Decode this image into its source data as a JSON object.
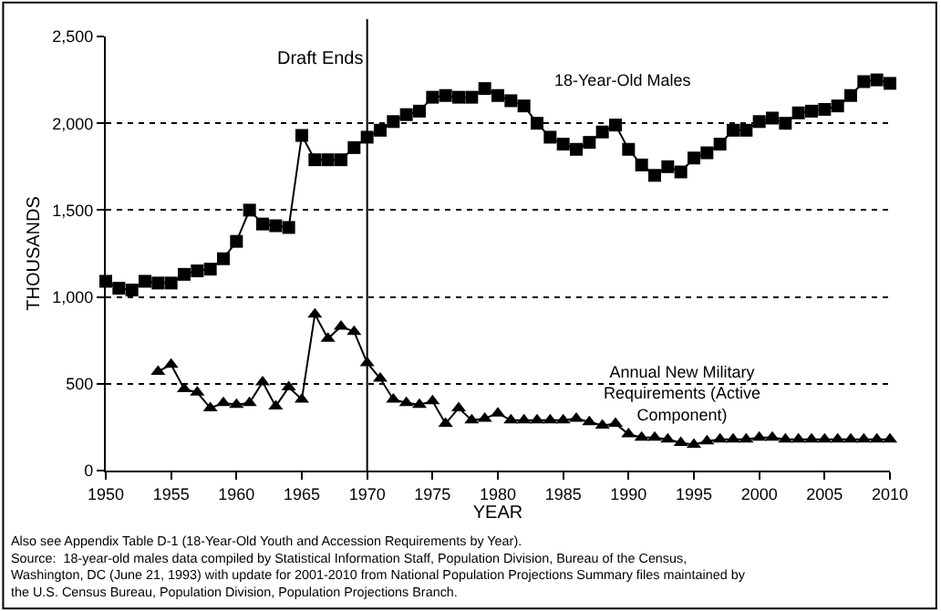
{
  "chart_data": {
    "type": "line",
    "xlabel": "YEAR",
    "ylabel": "THOUSANDS",
    "x": [
      1950,
      1951,
      1952,
      1953,
      1954,
      1955,
      1956,
      1957,
      1958,
      1959,
      1960,
      1961,
      1962,
      1963,
      1964,
      1965,
      1966,
      1967,
      1968,
      1969,
      1970,
      1971,
      1972,
      1973,
      1974,
      1975,
      1976,
      1977,
      1978,
      1979,
      1980,
      1981,
      1982,
      1983,
      1984,
      1985,
      1986,
      1987,
      1988,
      1989,
      1990,
      1991,
      1992,
      1993,
      1994,
      1995,
      1996,
      1997,
      1998,
      1999,
      2000,
      2001,
      2002,
      2003,
      2004,
      2005,
      2006,
      2007,
      2008,
      2009,
      2010
    ],
    "series": [
      {
        "name": "18-Year-Old Males",
        "color": "#000000",
        "marker": "square",
        "values": [
          1090,
          1050,
          1040,
          1090,
          1080,
          1080,
          1130,
          1150,
          1160,
          1220,
          1320,
          1500,
          1420,
          1410,
          1400,
          1930,
          1790,
          1790,
          1790,
          1860,
          1920,
          1960,
          2010,
          2050,
          2070,
          2150,
          2160,
          2150,
          2150,
          2200,
          2160,
          2130,
          2100,
          2000,
          1920,
          1880,
          1850,
          1890,
          1950,
          1990,
          1850,
          1760,
          1700,
          1750,
          1720,
          1800,
          1830,
          1880,
          1960,
          1960,
          2010,
          2030,
          2000,
          2060,
          2070,
          2080,
          2100,
          2160,
          2240,
          2250,
          2230
        ]
      },
      {
        "name": "Annual New Military Requirements (Active Component)",
        "color": "#000000",
        "marker": "triangle",
        "values": [
          null,
          null,
          null,
          null,
          570,
          610,
          470,
          450,
          360,
          390,
          380,
          390,
          510,
          370,
          480,
          410,
          900,
          760,
          830,
          800,
          620,
          530,
          410,
          390,
          380,
          400,
          270,
          360,
          290,
          300,
          330,
          290,
          290,
          290,
          290,
          290,
          300,
          280,
          260,
          270,
          210,
          190,
          190,
          180,
          160,
          150,
          170,
          180,
          180,
          180,
          190,
          190,
          180,
          180,
          180,
          180,
          180,
          180,
          180,
          180,
          180
        ]
      }
    ],
    "xlim": [
      1950,
      2010
    ],
    "xticks": [
      1950,
      1955,
      1960,
      1965,
      1970,
      1975,
      1980,
      1985,
      1990,
      1995,
      2000,
      2005,
      2010
    ],
    "ylim": [
      0,
      2500
    ],
    "yticks": [
      {
        "value": 0,
        "label": "0"
      },
      {
        "value": 500,
        "label": "500"
      },
      {
        "value": 1000,
        "label": "1,000"
      },
      {
        "value": 1500,
        "label": "1,500"
      },
      {
        "value": 2000,
        "label": "2,000"
      },
      {
        "value": 2500,
        "label": "2,500"
      }
    ],
    "grid": "y",
    "legend": false,
    "line_style": "solid",
    "ref_lines": [
      {
        "axis": "x",
        "value": 1970,
        "label": "Draft Ends",
        "color": "#000000"
      }
    ],
    "annotations": [
      "Also see Appendix Table D-1 (18-Year-Old Youth and Accession Requirements by Year).",
      "Source:  18-year-old males data compiled by Statistical Information Staff, Population Division, Bureau of the Census, Washington, DC (June 21, 1993) with update for 2001-2010 from National Population Projections Summary files maintained by the U.S. Census Bureau, Population Division, Population Projections Branch."
    ]
  }
}
